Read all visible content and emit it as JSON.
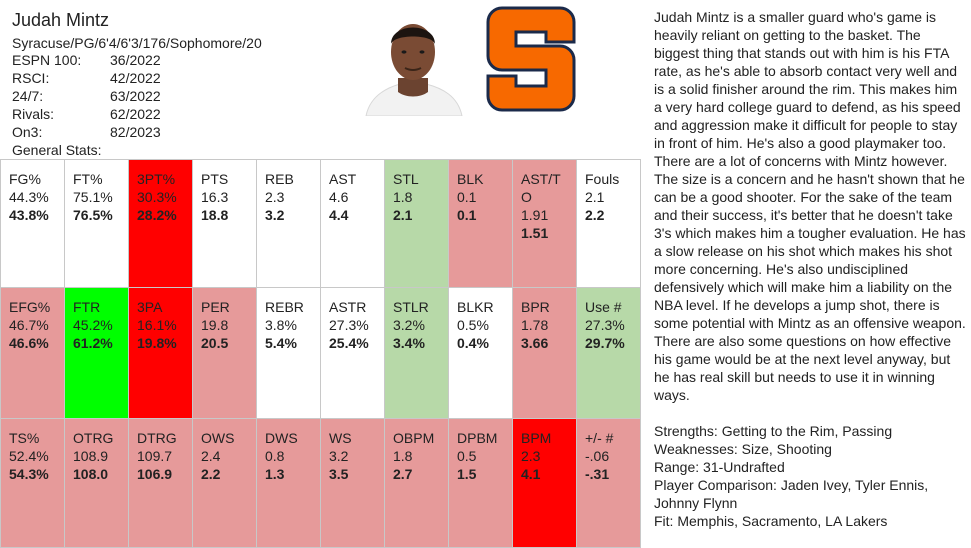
{
  "player": {
    "name": "Judah Mintz",
    "bio": "Syracuse/PG/6'4/6'3/176/Sophomore/20",
    "rankings": [
      {
        "label": "ESPN 100:",
        "value": "36/2022"
      },
      {
        "label": "RSCI:",
        "value": "42/2022"
      },
      {
        "label": "24/7:",
        "value": "63/2022"
      },
      {
        "label": "Rivals:",
        "value": "62/2022"
      },
      {
        "label": "On3:",
        "value": "82/2023"
      }
    ],
    "general_stats_label": "General Stats:"
  },
  "stats": [
    [
      {
        "label": "FG%",
        "v1": "44.3%",
        "v2": "43.8%",
        "color": "w"
      },
      {
        "label": "FT%",
        "v1": "75.1%",
        "v2": "76.5%",
        "color": "w"
      },
      {
        "label": "3PT%",
        "v1": "30.3%",
        "v2": "28.2%",
        "color": "R"
      },
      {
        "label": "PTS",
        "v1": "16.3",
        "v2": "18.8",
        "color": "w"
      },
      {
        "label": "REB",
        "v1": "2.3",
        "v2": "3.2",
        "color": "w"
      },
      {
        "label": "AST",
        "v1": "4.6",
        "v2": "4.4",
        "color": "w"
      },
      {
        "label": "STL",
        "v1": "1.8",
        "v2": "2.1",
        "color": "g"
      },
      {
        "label": "BLK",
        "v1": "0.1",
        "v2": "0.1",
        "color": "r"
      },
      {
        "label": "AST/T\nO",
        "v1": "1.91",
        "v2": "1.51",
        "color": "r"
      },
      {
        "label": "Fouls",
        "v1": "2.1",
        "v2": "2.2",
        "color": "w"
      }
    ],
    [
      {
        "label": "EFG%",
        "v1": "46.7%",
        "v2": "46.6%",
        "color": "r"
      },
      {
        "label": "FTR",
        "v1": "45.2%",
        "v2": "61.2%",
        "color": "G"
      },
      {
        "label": "3PA",
        "v1": "16.1%",
        "v2": "19.8%",
        "color": "R"
      },
      {
        "label": "PER",
        "v1": "19.8",
        "v2": "20.5",
        "color": "r"
      },
      {
        "label": "REBR",
        "v1": "3.8%",
        "v2": "5.4%",
        "color": "w"
      },
      {
        "label": "ASTR",
        "v1": "27.3%",
        "v2": "25.4%",
        "color": "w"
      },
      {
        "label": "STLR",
        "v1": "3.2%",
        "v2": "3.4%",
        "color": "g"
      },
      {
        "label": "BLKR",
        "v1": "0.5%",
        "v2": "0.4%",
        "color": "w"
      },
      {
        "label": "BPR",
        "v1": "1.78",
        "v2": "3.66",
        "color": "r"
      },
      {
        "label": "Use #",
        "v1": "27.3%",
        "v2": "29.7%",
        "color": "g"
      }
    ],
    [
      {
        "label": "TS%",
        "v1": "52.4%",
        "v2": "54.3%",
        "color": "r"
      },
      {
        "label": "OTRG",
        "v1": "108.9",
        "v2": "108.0",
        "color": "r"
      },
      {
        "label": "DTRG",
        "v1": "109.7",
        "v2": "106.9",
        "color": "r"
      },
      {
        "label": "OWS",
        "v1": "2.4",
        "v2": "2.2",
        "color": "r"
      },
      {
        "label": "DWS",
        "v1": "0.8",
        "v2": "1.3",
        "color": "r"
      },
      {
        "label": "WS",
        "v1": "3.2",
        "v2": "3.5",
        "color": "r"
      },
      {
        "label": "OBPM",
        "v1": "1.8",
        "v2": "2.7",
        "color": "r"
      },
      {
        "label": "DPBM",
        "v1": "0.5",
        "v2": "1.5",
        "color": "r"
      },
      {
        "label": "BPM",
        "v1": "2.3",
        "v2": "4.1",
        "color": "R"
      },
      {
        "label": "+/- #",
        "v1": "-.06",
        "v2": "-.31",
        "color": "r"
      }
    ]
  ],
  "colors": {
    "w": "#ffffff",
    "r": "#e69a9a",
    "R": "#ff0000",
    "g": "#b7d9a8",
    "G": "#00ff00",
    "logo_orange": "#f76900",
    "logo_navy": "#1b2a4a"
  },
  "report": {
    "paragraph": "Judah Mintz is a smaller guard who's game is heavily reliant on getting to the basket. The biggest thing that stands out with him is his FTA rate, as he's able to absorb contact very well and is a solid finisher around the rim. This makes him a very hard college guard to defend, as his speed and aggression make it difficult for people to stay in front of him. He's also a good playmaker too. There are a lot of concerns with Mintz however. The size is a concern and he hasn't shown that he can be a good shooter.  For the sake of the team and their success, it's better that he doesn't take 3's which makes him a tougher evaluation. He has a slow release on his shot which makes his shot more concerning.  He's also undisciplined defensively which will make him a liability on the NBA level. If he develops a jump shot, there is some potential with Mintz as an offensive weapon. There are also some questions on how effective his game would be at the next level anyway, but he has real skill but needs to use it in winning ways.",
    "strengths": "Strengths: Getting to the Rim, Passing",
    "weaknesses": "Weaknesses: Size, Shooting",
    "range": "Range: 31-Undrafted",
    "comparison": "Player Comparison: Jaden Ivey, Tyler Ennis, Johnny Flynn",
    "fit": "Fit: Memphis, Sacramento, LA Lakers"
  },
  "icons": {
    "photo": "player-headshot-icon",
    "logo": "syracuse-s-logo-icon"
  }
}
